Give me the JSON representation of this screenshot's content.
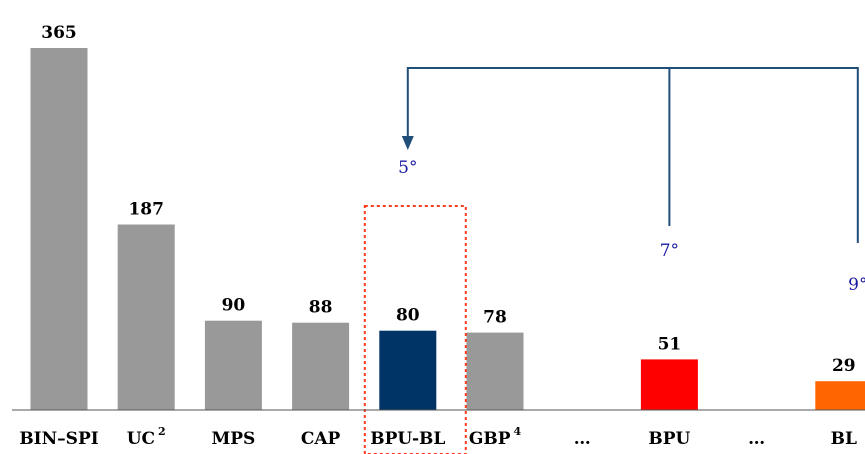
{
  "chart_data": {
    "type": "bar",
    "title": "",
    "xlabel": "",
    "ylabel": "",
    "categories": [
      {
        "label": "BIN–SPI",
        "sup": ""
      },
      {
        "label": "UC",
        "sup": "2"
      },
      {
        "label": "MPS",
        "sup": ""
      },
      {
        "label": "CAP",
        "sup": ""
      },
      {
        "label": "BPU-BL",
        "sup": ""
      },
      {
        "label": "GBP",
        "sup": "4"
      },
      {
        "label": "…",
        "sup": ""
      },
      {
        "label": "BPU",
        "sup": ""
      },
      {
        "label": "…",
        "sup": ""
      },
      {
        "label": "BL",
        "sup": ""
      }
    ],
    "values": [
      365,
      187,
      90,
      88,
      80,
      78,
      null,
      51,
      null,
      29
    ],
    "value_labels": [
      "365",
      "187",
      "90",
      "88",
      "80",
      "78",
      "",
      "51",
      "",
      "29"
    ],
    "bar_colors": [
      "#999999",
      "#999999",
      "#999999",
      "#999999",
      "#003366",
      "#999999",
      "",
      "#ff0000",
      "",
      "#ff6600"
    ],
    "highlight_category_index": 4,
    "highlight_color": "#ff3b1f",
    "annotations": [
      {
        "text": "5°",
        "category_index": 4
      },
      {
        "text": "7°",
        "category_index": 7
      },
      {
        "text": "9°",
        "category_index": 9
      }
    ],
    "connector": {
      "from": [
        7,
        9
      ],
      "to": 4,
      "color": "#1f4e79"
    },
    "ylim": [
      0,
      365
    ],
    "grid": false
  }
}
